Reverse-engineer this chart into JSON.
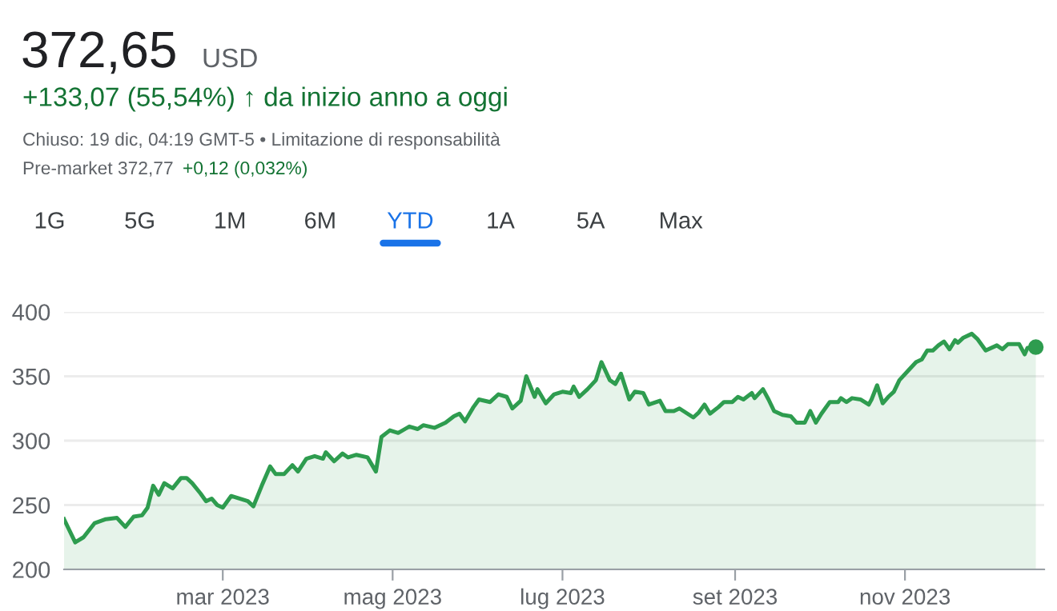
{
  "chart_data": {
    "type": "area",
    "title": "372,65",
    "annotations": [
      "USD",
      "+133,07 (55,54%) ↑ da inizio anno a oggi",
      "Chiuso: 19 dic, 04:19 GMT-5 • Limitazione di responsabilità",
      "Pre-market 372,77",
      "+0,12 (0,032%)",
      "1G",
      "5G",
      "1M",
      "6M",
      "YTD",
      "1A",
      "5A",
      "Max"
    ],
    "x": [
      "2023-01-03",
      "2023-01-07",
      "2023-01-10",
      "2023-01-14",
      "2023-01-18",
      "2023-01-22",
      "2023-01-25",
      "2023-01-28",
      "2023-01-31",
      "2023-02-02",
      "2023-02-04",
      "2023-02-06",
      "2023-02-08",
      "2023-02-11",
      "2023-02-14",
      "2023-02-16",
      "2023-02-18",
      "2023-02-21",
      "2023-02-23",
      "2023-02-25",
      "2023-02-27",
      "2023-03-01",
      "2023-03-04",
      "2023-03-07",
      "2023-03-10",
      "2023-03-12",
      "2023-03-15",
      "2023-03-18",
      "2023-03-20",
      "2023-03-23",
      "2023-03-26",
      "2023-03-28",
      "2023-03-31",
      "2023-04-03",
      "2023-04-06",
      "2023-04-07",
      "2023-04-10",
      "2023-04-13",
      "2023-04-15",
      "2023-04-18",
      "2023-04-22",
      "2023-04-25",
      "2023-04-27",
      "2023-04-30",
      "2023-05-03",
      "2023-05-07",
      "2023-05-10",
      "2023-05-12",
      "2023-05-16",
      "2023-05-20",
      "2023-05-23",
      "2023-05-25",
      "2023-05-27",
      "2023-05-30",
      "2023-06-01",
      "2023-06-05",
      "2023-06-08",
      "2023-06-11",
      "2023-06-13",
      "2023-06-16",
      "2023-06-18",
      "2023-06-21",
      "2023-06-22",
      "2023-06-25",
      "2023-06-28",
      "2023-07-01",
      "2023-07-04",
      "2023-07-05",
      "2023-07-07",
      "2023-07-10",
      "2023-07-13",
      "2023-07-15",
      "2023-07-18",
      "2023-07-20",
      "2023-07-22",
      "2023-07-25",
      "2023-07-27",
      "2023-07-30",
      "2023-08-01",
      "2023-08-05",
      "2023-08-07",
      "2023-08-10",
      "2023-08-12",
      "2023-08-17",
      "2023-08-19",
      "2023-08-21",
      "2023-08-23",
      "2023-08-26",
      "2023-08-28",
      "2023-08-31",
      "2023-09-02",
      "2023-09-04",
      "2023-09-07",
      "2023-09-08",
      "2023-09-11",
      "2023-09-13",
      "2023-09-15",
      "2023-09-18",
      "2023-09-21",
      "2023-09-23",
      "2023-09-26",
      "2023-09-28",
      "2023-09-30",
      "2023-10-02",
      "2023-10-05",
      "2023-10-08",
      "2023-10-09",
      "2023-10-11",
      "2023-10-13",
      "2023-10-16",
      "2023-10-19",
      "2023-10-20",
      "2023-10-22",
      "2023-10-24",
      "2023-10-26",
      "2023-10-28",
      "2023-10-30",
      "2023-11-02",
      "2023-11-05",
      "2023-11-07",
      "2023-11-09",
      "2023-11-11",
      "2023-11-13",
      "2023-11-15",
      "2023-11-17",
      "2023-11-19",
      "2023-11-20",
      "2023-11-22",
      "2023-11-25",
      "2023-11-27",
      "2023-11-30",
      "2023-12-04",
      "2023-12-06",
      "2023-12-08",
      "2023-12-12",
      "2023-12-14",
      "2023-12-15",
      "2023-12-18"
    ],
    "series": [
      {
        "color": "#2e9c4f",
        "values": [
          239,
          221,
          225,
          236,
          239,
          240,
          233,
          241,
          242,
          248,
          265,
          258,
          267,
          263,
          271,
          271,
          267,
          259,
          253,
          255,
          250,
          248,
          257,
          255,
          253,
          249,
          265,
          280,
          274,
          274,
          281,
          276,
          286,
          288,
          286,
          291,
          284,
          290,
          287,
          289,
          287,
          276,
          303,
          308,
          306,
          311,
          309,
          312,
          310,
          314,
          319,
          321,
          315,
          326,
          332,
          330,
          336,
          334,
          325,
          331,
          350,
          334,
          340,
          329,
          336,
          338,
          337,
          342,
          334,
          340,
          347,
          361,
          347,
          344,
          352,
          332,
          338,
          337,
          328,
          331,
          323,
          323,
          325,
          318,
          322,
          328,
          321,
          326,
          330,
          330,
          334,
          332,
          337,
          333,
          340,
          332,
          323,
          320,
          319,
          314,
          314,
          323,
          314,
          321,
          330,
          330,
          333,
          330,
          333,
          332,
          328,
          332,
          343,
          329,
          334,
          338,
          347,
          354,
          361,
          363,
          370,
          370,
          374,
          377,
          371,
          378,
          376,
          380,
          383,
          379,
          370,
          374,
          371,
          375,
          375,
          367,
          372,
          372.65
        ]
      }
    ],
    "xlim": [
      "2023-01-03",
      "2023-12-21"
    ],
    "xticks": [
      {
        "value": "2023-03-01",
        "label": "mar 2023"
      },
      {
        "value": "2023-05-01",
        "label": "mag 2023"
      },
      {
        "value": "2023-07-01",
        "label": "lug 2023"
      },
      {
        "value": "2023-09-01",
        "label": "set 2023"
      },
      {
        "value": "2023-11-01",
        "label": "nov 2023"
      }
    ],
    "ylim": [
      200,
      400
    ],
    "yticks": [
      200,
      250,
      300,
      350,
      400
    ],
    "grid": "y"
  }
}
